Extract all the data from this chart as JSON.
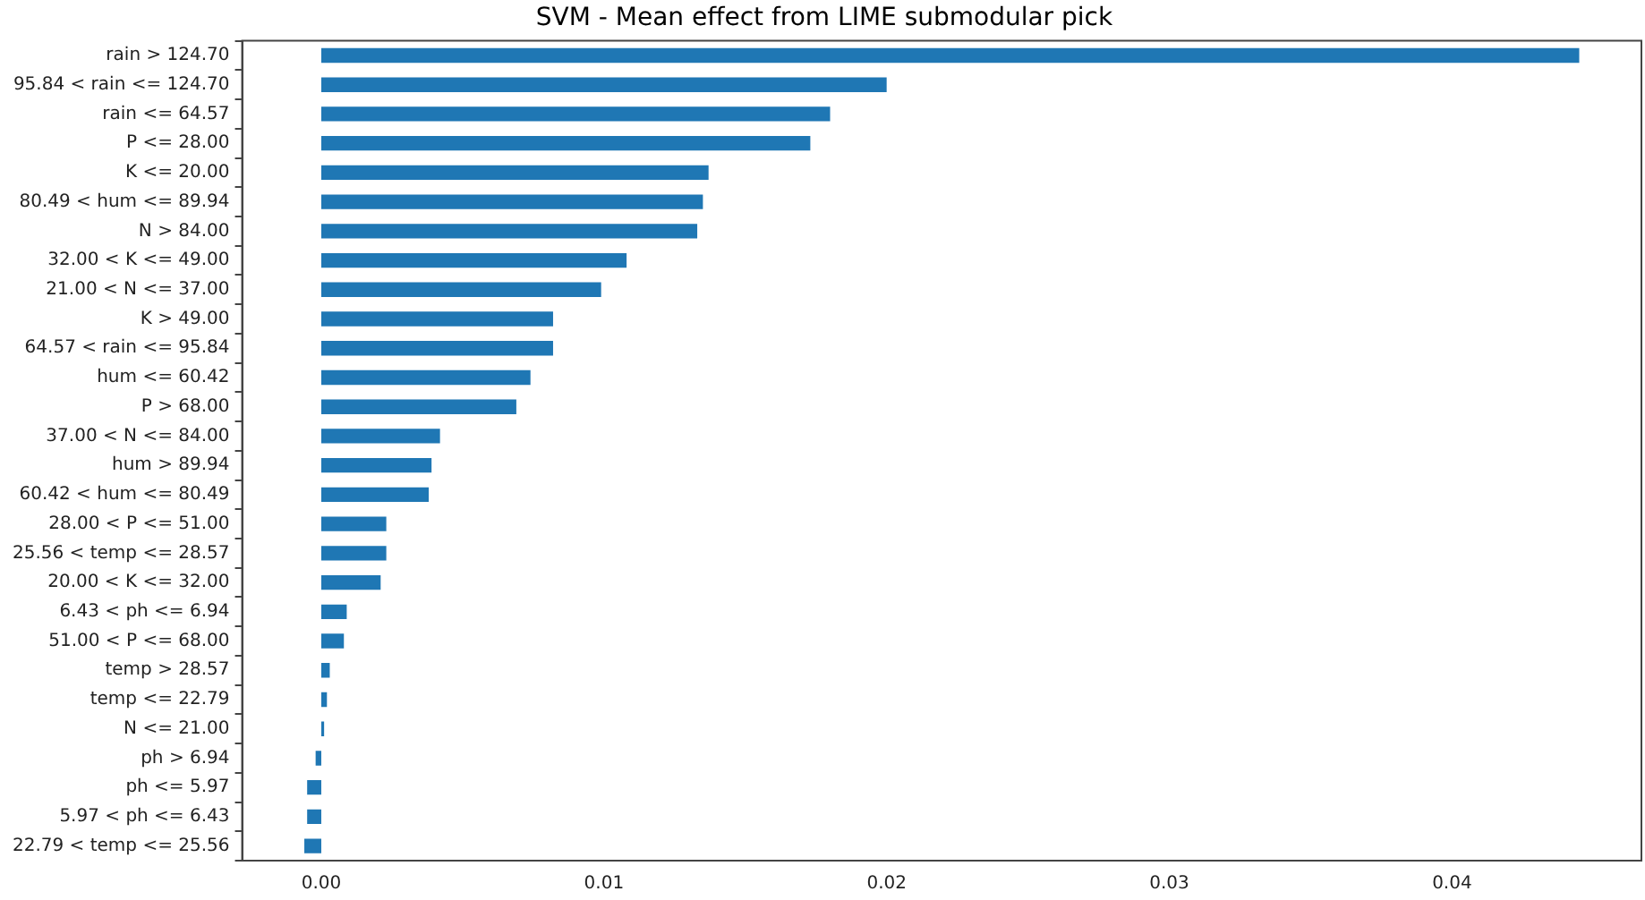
{
  "chart_data": {
    "type": "bar",
    "orientation": "horizontal",
    "title": "SVM - Mean effect from LIME submodular pick",
    "categories": [
      "rain > 124.70",
      "95.84 < rain <= 124.70",
      "rain <= 64.57",
      "P <= 28.00",
      "K <= 20.00",
      "80.49 < hum <= 89.94",
      "N > 84.00",
      "32.00 < K <= 49.00",
      "21.00 < N <= 37.00",
      "K > 49.00",
      "64.57 < rain <= 95.84",
      "hum <= 60.42",
      "P > 68.00",
      "37.00 < N <= 84.00",
      "hum > 89.94",
      "60.42 < hum <= 80.49",
      "28.00 < P <= 51.00",
      "25.56 < temp <= 28.57",
      "20.00 < K <= 32.00",
      "6.43 < ph <= 6.94",
      "51.00 < P <= 68.00",
      "temp > 28.57",
      "temp <= 22.79",
      "N <= 21.00",
      "ph > 6.94",
      "ph <= 5.97",
      "5.97 < ph <= 6.43",
      "22.79 < temp <= 25.56"
    ],
    "values": [
      0.0445,
      0.02,
      0.018,
      0.0173,
      0.0137,
      0.0135,
      0.0133,
      0.0108,
      0.0099,
      0.0082,
      0.0082,
      0.0074,
      0.0069,
      0.0042,
      0.0039,
      0.0038,
      0.0023,
      0.0023,
      0.0021,
      0.0009,
      0.0008,
      0.0003,
      0.0002,
      0.0001,
      -0.0002,
      -0.0005,
      -0.0005,
      -0.0006
    ],
    "color": "#1f77b4",
    "xlim": [
      -0.0028,
      0.0467
    ],
    "xticks": [
      {
        "value": 0,
        "label": "0.00"
      },
      {
        "value": 0.01,
        "label": "0.01"
      },
      {
        "value": 0.02,
        "label": "0.02"
      },
      {
        "value": 0.03,
        "label": "0.03"
      },
      {
        "value": 0.04,
        "label": "0.04"
      }
    ],
    "grid": false,
    "legend": false
  }
}
